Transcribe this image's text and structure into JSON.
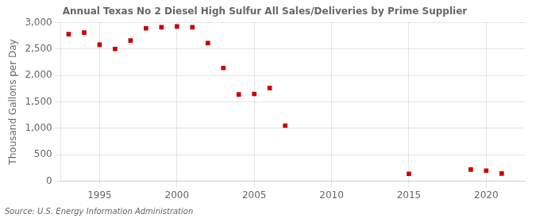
{
  "chart_data": {
    "type": "scatter",
    "title": "Annual Texas No 2 Diesel High Sulfur All Sales/Deliveries by Prime Supplier",
    "ylabel": "Thousand Gallons per Day",
    "annotations": [
      "Source: U.S. Energy Information Administration"
    ],
    "x": [
      1993,
      1994,
      1995,
      1996,
      1997,
      1998,
      1999,
      2000,
      2001,
      2002,
      2003,
      2004,
      2005,
      2006,
      2007,
      2015,
      2019,
      2020,
      2021
    ],
    "values": [
      2780,
      2810,
      2580,
      2500,
      2660,
      2890,
      2910,
      2925,
      2910,
      2610,
      2140,
      1640,
      1650,
      1760,
      1050,
      140,
      220,
      200,
      145
    ],
    "color": "#cc0000",
    "marker": "square",
    "xlim": [
      1992.5,
      2022.5
    ],
    "xticks": [
      1995,
      2000,
      2005,
      2010,
      2015,
      2020
    ],
    "ylim": [
      0,
      3000
    ],
    "yticks": [
      0,
      500,
      {
        "value": 1000,
        "label": "1,000"
      },
      {
        "value": 1500,
        "label": "1,500"
      },
      {
        "value": 2000,
        "label": "2,000"
      },
      {
        "value": 2500,
        "label": "2,500"
      },
      {
        "value": 3000,
        "label": "3,000"
      }
    ],
    "grid": true
  }
}
